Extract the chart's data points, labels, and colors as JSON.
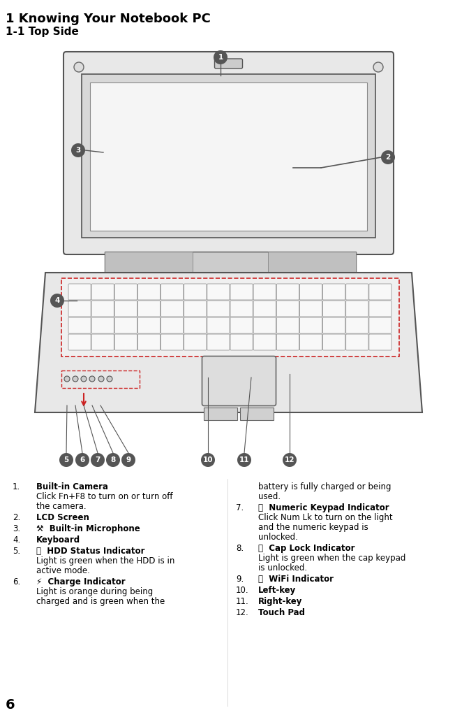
{
  "title": "1 Knowing Your Notebook PC",
  "subtitle": "1-1 Top Side",
  "page_number": "6",
  "bg_color": "#ffffff",
  "text_color": "#000000",
  "title_fontsize": 13,
  "subtitle_fontsize": 11,
  "body_fontsize": 8.5,
  "left_column": [
    {
      "num": "1.",
      "bold": "Built-in Camera",
      "text": "Click Fn+F8 to turn on or turn off\nthe camera."
    },
    {
      "num": "2.",
      "bold": "LCD Screen",
      "text": ""
    },
    {
      "num": "3.",
      "bold": "Built-in Microphone",
      "icon": true,
      "text": ""
    },
    {
      "num": "4.",
      "bold": "Keyboard",
      "text": ""
    },
    {
      "num": "5.",
      "bold": "HDD Status Indicator",
      "icon": true,
      "text": "Light is green when the HDD is in\nactive mode."
    },
    {
      "num": "6.",
      "bold": "Charge Indicator",
      "icon": true,
      "text": "Light is orange during being\ncharged and is green when the"
    }
  ],
  "right_column": [
    {
      "num": "",
      "bold": "",
      "text": "battery is fully charged or being\nused."
    },
    {
      "num": "7.",
      "bold": "Numeric Keypad Indicator",
      "icon": true,
      "text": "Click Num Lk to turn on the light\nand the numeric keypad is\nunlocked."
    },
    {
      "num": "8.",
      "bold": "Cap Lock Indicator",
      "icon": true,
      "text": "Light is green when the cap keypad\nis unlocked."
    },
    {
      "num": "9.",
      "bold": "WiFi Indicator",
      "icon": true,
      "text": ""
    },
    {
      "num": "10.",
      "bold": "Left-key",
      "text": ""
    },
    {
      "num": "11.",
      "bold": "Right-key",
      "text": ""
    },
    {
      "num": "12.",
      "bold": "Touch Pad",
      "text": ""
    }
  ]
}
